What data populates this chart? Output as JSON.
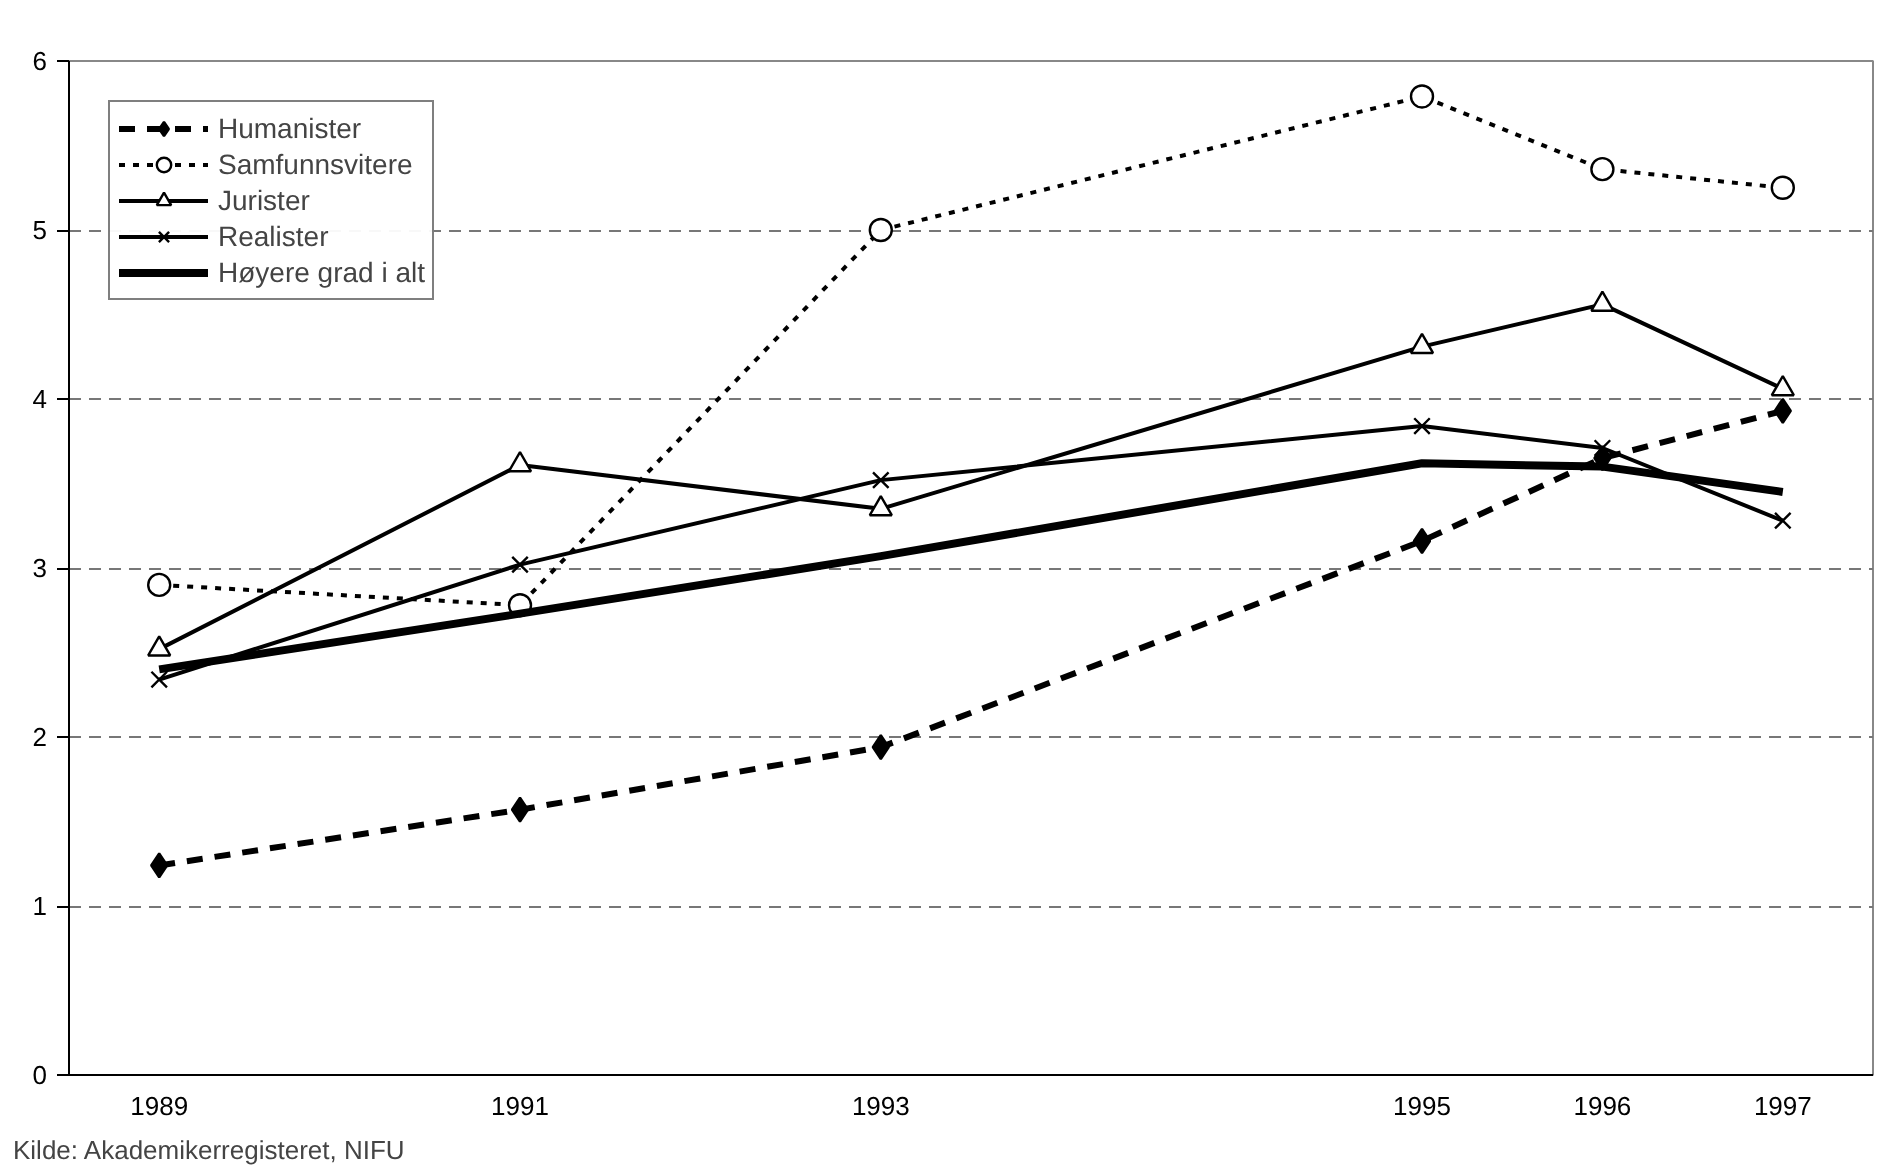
{
  "chart_data": {
    "type": "line",
    "categories": [
      "1989",
      null,
      "1991",
      null,
      "1993",
      null,
      null,
      "1995",
      "1996",
      "1997"
    ],
    "series": [
      {
        "name": "Humanister",
        "color": "#000000",
        "line_style": "dashed",
        "marker": "diamond",
        "values": [
          1.24,
          null,
          1.57,
          null,
          1.94,
          null,
          null,
          3.16,
          3.65,
          3.93
        ]
      },
      {
        "name": "Samfunnsvitere",
        "color": "#000000",
        "line_style": "dotted",
        "marker": "circle",
        "values": [
          2.9,
          null,
          2.78,
          null,
          5.0,
          null,
          null,
          5.79,
          5.36,
          5.25
        ]
      },
      {
        "name": "Jurister",
        "color": "#000000",
        "line_style": "solid",
        "marker": "triangle",
        "values": [
          2.52,
          null,
          3.61,
          null,
          3.35,
          null,
          null,
          4.31,
          4.56,
          4.06
        ]
      },
      {
        "name": "Realister",
        "color": "#000000",
        "line_style": "solid",
        "marker": "cross",
        "values": [
          2.34,
          null,
          3.02,
          null,
          3.52,
          null,
          null,
          3.84,
          3.71,
          3.28
        ]
      },
      {
        "name": "Høyere grad i alt",
        "color": "#000000",
        "line_style": "solid",
        "marker": "none",
        "values": [
          2.4,
          null,
          2.73,
          null,
          3.07,
          null,
          null,
          3.62,
          3.6,
          3.45
        ]
      }
    ],
    "ylim": [
      0,
      6
    ],
    "yticks": [
      0,
      1,
      2,
      3,
      4,
      5,
      6
    ],
    "grid": "y",
    "legend": "top left",
    "annotations": [
      "Kilde: Akademikerregisteret, NIFU"
    ]
  }
}
